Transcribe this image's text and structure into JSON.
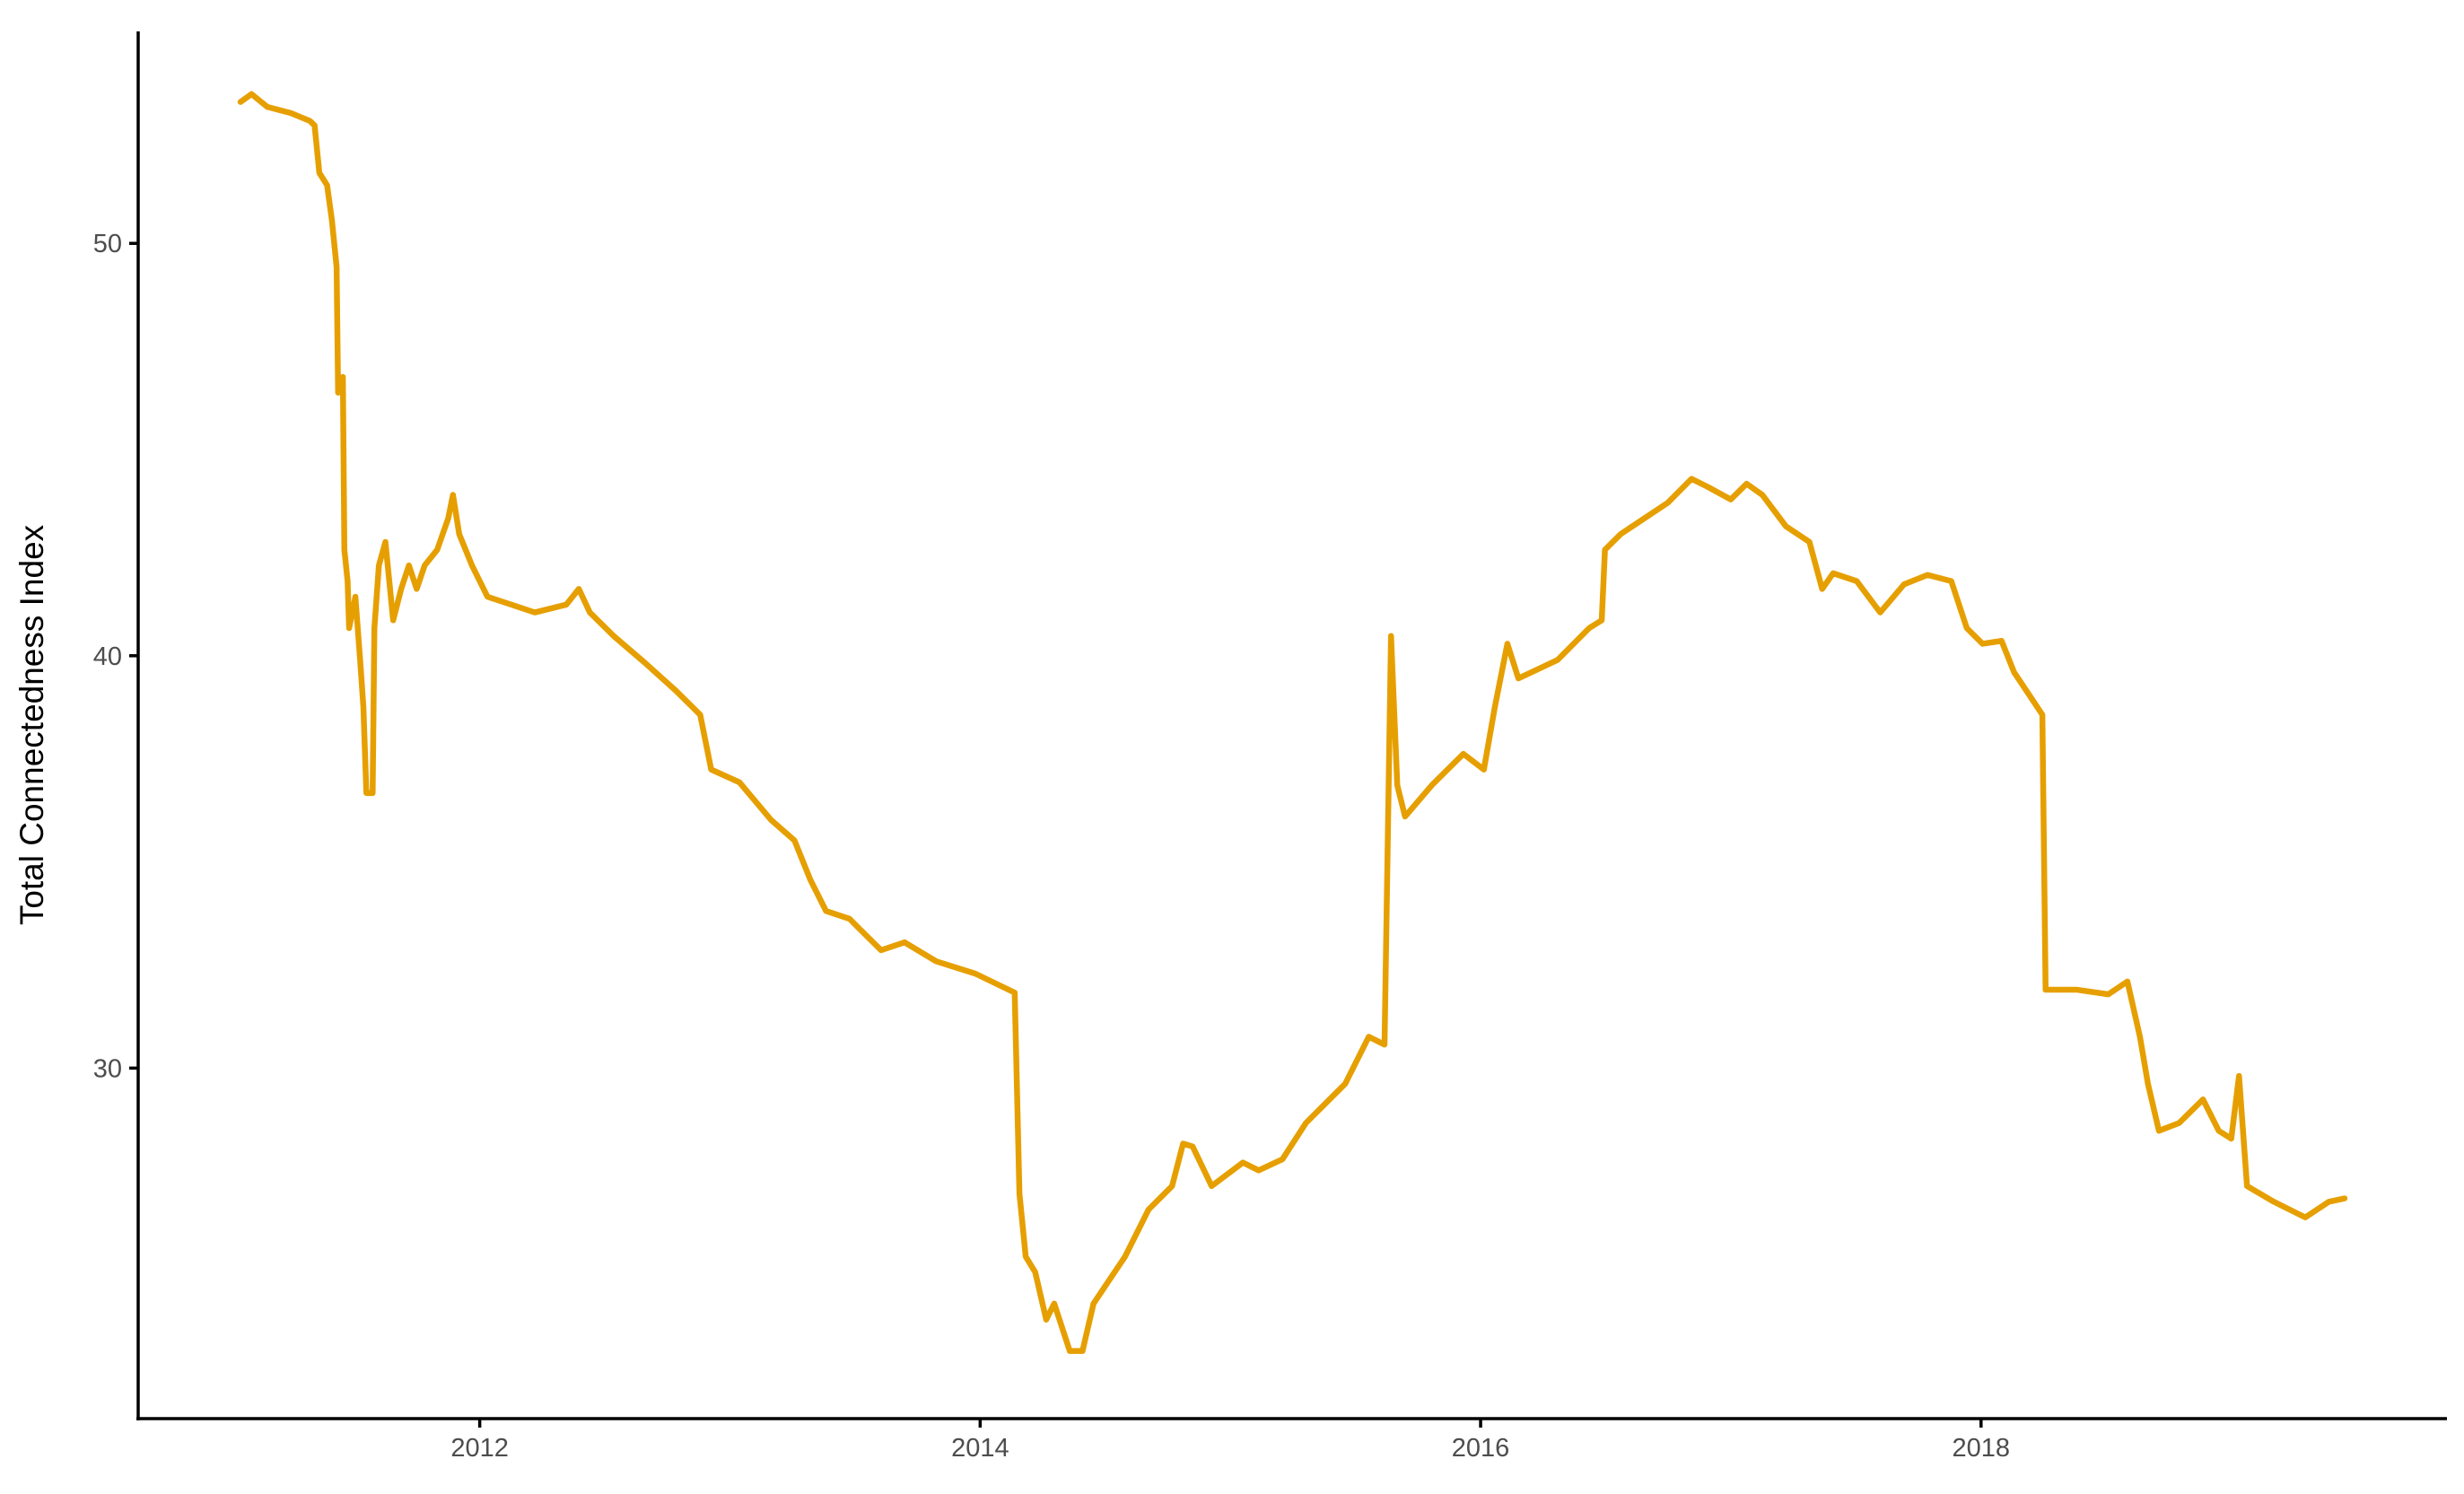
{
  "chart_data": {
    "type": "line",
    "y_label": "Total Connectedness Index",
    "xlim": [
      2010.635,
      2019.862
    ],
    "ylim": [
      21.5,
      55.14
    ],
    "xticks": [
      2012,
      2014,
      2016,
      2018
    ],
    "yticks": [
      30,
      40,
      50
    ],
    "grid": false,
    "x": [
      2011.044,
      2011.088,
      2011.151,
      2011.245,
      2011.321,
      2011.34,
      2011.359,
      2011.39,
      2011.409,
      2011.428,
      2011.434,
      2011.453,
      2011.459,
      2011.472,
      2011.478,
      2011.503,
      2011.522,
      2011.535,
      2011.547,
      2011.572,
      2011.579,
      2011.597,
      2011.623,
      2011.654,
      2011.686,
      2011.717,
      2011.748,
      2011.78,
      2011.83,
      2011.874,
      2011.893,
      2011.918,
      2011.969,
      2012.031,
      2012.126,
      2012.22,
      2012.346,
      2012.396,
      2012.44,
      2012.535,
      2012.66,
      2012.786,
      2012.881,
      2012.925,
      2013.038,
      2013.164,
      2013.258,
      2013.321,
      2013.384,
      2013.478,
      2013.509,
      2013.604,
      2013.698,
      2013.824,
      2013.981,
      2014.138,
      2014.157,
      2014.182,
      2014.22,
      2014.264,
      2014.296,
      2014.358,
      2014.409,
      2014.453,
      2014.516,
      2014.579,
      2014.673,
      2014.767,
      2014.811,
      2014.849,
      2014.925,
      2015.05,
      2015.113,
      2015.208,
      2015.302,
      2015.396,
      2015.459,
      2015.553,
      2015.616,
      2015.642,
      2015.667,
      2015.698,
      2015.805,
      2015.931,
      2016.013,
      2016.057,
      2016.107,
      2016.151,
      2016.308,
      2016.434,
      2016.484,
      2016.497,
      2016.56,
      2016.654,
      2016.748,
      2016.843,
      2016.906,
      2017.0,
      2017.063,
      2017.126,
      2017.22,
      2017.314,
      2017.365,
      2017.409,
      2017.503,
      2017.597,
      2017.692,
      2017.786,
      2017.881,
      2017.943,
      2018.006,
      2018.082,
      2018.132,
      2018.245,
      2018.258,
      2018.384,
      2018.509,
      2018.585,
      2018.635,
      2018.667,
      2018.711,
      2018.792,
      2018.887,
      2018.95,
      2019.0,
      2019.031,
      2019.063,
      2019.17,
      2019.296,
      2019.39,
      2019.453
    ],
    "series": [
      {
        "color": "#E69F00",
        "values": [
          53.43,
          53.62,
          53.31,
          53.16,
          52.97,
          52.86,
          51.71,
          51.41,
          50.57,
          49.43,
          46.38,
          46.76,
          42.57,
          41.81,
          40.67,
          41.43,
          39.9,
          38.76,
          36.67,
          36.67,
          40.67,
          42.19,
          42.76,
          40.86,
          41.62,
          42.19,
          41.62,
          42.19,
          42.57,
          43.33,
          43.9,
          42.95,
          42.19,
          41.43,
          41.24,
          41.05,
          41.24,
          41.62,
          41.05,
          40.48,
          39.83,
          39.14,
          38.57,
          37.24,
          36.93,
          36.02,
          35.52,
          34.57,
          33.81,
          33.62,
          33.43,
          32.86,
          33.05,
          32.59,
          32.29,
          31.83,
          26.95,
          25.43,
          25.05,
          23.9,
          24.29,
          23.14,
          23.14,
          24.29,
          24.86,
          25.43,
          26.57,
          27.14,
          28.17,
          28.1,
          27.14,
          27.71,
          27.52,
          27.79,
          28.67,
          29.24,
          29.62,
          30.76,
          30.57,
          40.48,
          36.86,
          36.1,
          36.86,
          37.62,
          37.24,
          38.76,
          40.29,
          39.45,
          39.9,
          40.67,
          40.86,
          42.57,
          42.95,
          43.33,
          43.71,
          44.29,
          44.1,
          43.79,
          44.17,
          43.9,
          43.14,
          42.76,
          41.62,
          42.0,
          41.81,
          41.05,
          41.73,
          41.96,
          41.81,
          40.67,
          40.29,
          40.36,
          39.6,
          38.57,
          31.9,
          31.9,
          31.79,
          32.1,
          30.76,
          29.62,
          28.48,
          28.67,
          29.24,
          28.48,
          28.29,
          29.81,
          27.14,
          26.76,
          26.38,
          26.76,
          26.84
        ]
      }
    ]
  }
}
